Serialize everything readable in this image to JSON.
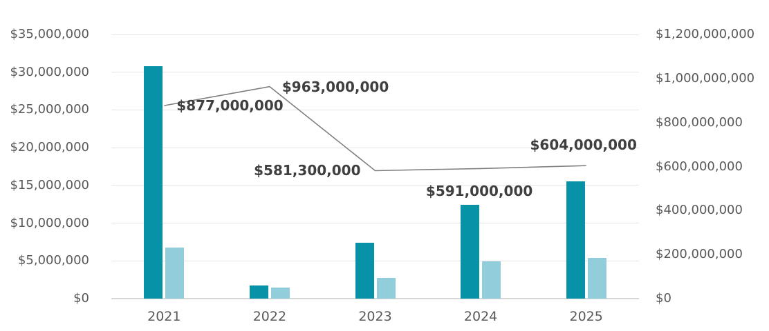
{
  "canvas": {
    "background": "#ffffff"
  },
  "colors": {
    "bar_dark_teal": "#0892a8",
    "bar_light_blue": "#92cddc",
    "trend_line": "#7f7f7f",
    "gridline": "#e4e4e4",
    "baseline": "#d6d6d6",
    "axis_text": "#595959",
    "data_label_text": "#3f3f3f"
  },
  "chart_data": {
    "type": "bar",
    "subtype": "combo-dual-axis-bars-and-line",
    "title": "",
    "legend": "none",
    "grid": true,
    "categories": [
      "2021",
      "2022",
      "2023",
      "2024",
      "2025"
    ],
    "bar_series": [
      {
        "name": "dark_teal_bars",
        "axis": "left",
        "color": "#0892a8",
        "values": [
          30800000,
          1700000,
          7400000,
          12400000,
          15500000
        ]
      },
      {
        "name": "light_blue_bars",
        "axis": "left",
        "color": "#92cddc",
        "values": [
          6800000,
          1500000,
          2700000,
          4900000,
          5400000
        ]
      }
    ],
    "line_series": {
      "name": "gray_trend_line",
      "axis": "right",
      "color": "#7f7f7f",
      "values": [
        877000000,
        963000000,
        581300000,
        591000000,
        604000000
      ],
      "labels": [
        "$877,000,000",
        "$963,000,000",
        "$581,300,000",
        "$591,000,000",
        "$604,000,000"
      ],
      "label_anchors": [
        "right",
        "right",
        "left",
        "below",
        "above"
      ]
    },
    "left_axis": {
      "min": 0,
      "max": 35000000,
      "tick_values": [
        35000000,
        30000000,
        25000000,
        20000000,
        15000000,
        10000000,
        5000000,
        0
      ],
      "tick_labels": [
        "$35,000,000",
        "$30,000,000",
        "$25,000,000",
        "$20,000,000",
        "$15,000,000",
        "$10,000,000",
        "$5,000,000",
        "$0"
      ]
    },
    "right_axis": {
      "min": 0,
      "max": 1200000000,
      "tick_values": [
        1200000000,
        1000000000,
        800000000,
        600000000,
        400000000,
        200000000,
        0
      ],
      "tick_labels": [
        "$1,200,000,000",
        "$1,000,000,000",
        "$800,000,000",
        "$600,000,000",
        "$400,000,000",
        "$200,000,000",
        "$0"
      ]
    },
    "x_axis": {
      "labels": [
        "2021",
        "2022",
        "2023",
        "2024",
        "2025"
      ]
    }
  }
}
